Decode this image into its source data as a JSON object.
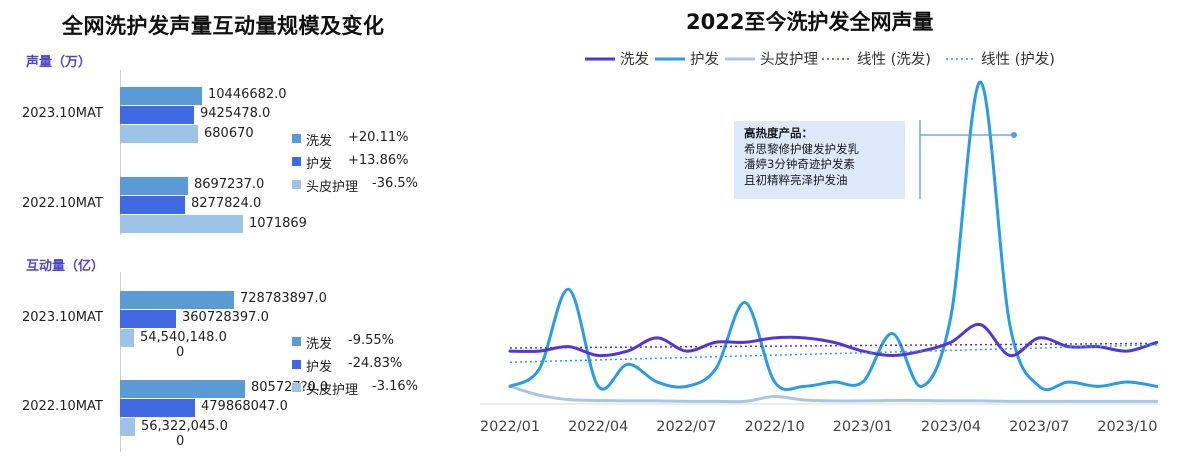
{
  "left_panel": {
    "title": "全网洗护发声量互动量规模及变化",
    "volume_label": "声量（万）",
    "interaction_label": "互动量（亿）"
  },
  "right_panel": {
    "title": "2022至今洗护发全网声量",
    "annotation": {
      "heading": "高热度产品：",
      "lines": [
        "希思黎修护健发护发乳",
        "潘婷3分钟奇迹护发素",
        "且初精粹亮泽护发油"
      ]
    }
  },
  "colors": {
    "wash": "#5b9bd5",
    "care": "#4169e1",
    "scalp": "#9dc3e6",
    "line_wash": "#5336d6",
    "line_care": "#2b9be6",
    "line_scalp": "#a9c7e4",
    "section_label": "#4f46c8"
  },
  "chart_data": [
    {
      "type": "bar",
      "orientation": "horizontal",
      "section": "声量（万）",
      "categories": [
        "2023.10MAT",
        "2022.10MAT"
      ],
      "series": [
        {
          "name": "洗发",
          "values": [
            "10446682.0",
            "8697237.0"
          ],
          "change": "+20.11%"
        },
        {
          "name": "护发",
          "values": [
            "9425478.0",
            "8277824.0"
          ],
          "change": "+13.86%"
        },
        {
          "name": "头皮护理",
          "values": [
            "680670",
            "1071869"
          ],
          "change": "-36.5%"
        }
      ]
    },
    {
      "type": "bar",
      "orientation": "horizontal",
      "section": "互动量（亿）",
      "categories": [
        "2023.10MAT",
        "2022.10MAT"
      ],
      "series": [
        {
          "name": "洗发",
          "values": [
            "728783897.0",
            "805727?0.0"
          ],
          "change": "-9.55%"
        },
        {
          "name": "护发",
          "values": [
            "360728397.0",
            "479868047.0"
          ],
          "change": "-24.83%"
        },
        {
          "name": "头皮护理",
          "values": [
            "54,540,148.0",
            "56,322,045.0"
          ],
          "change": "-3.16%"
        }
      ]
    },
    {
      "type": "line",
      "title": "2022至今洗护发全网声量",
      "x_ticks": [
        "2022/01",
        "2022/04",
        "2022/07",
        "2022/10",
        "2023/01",
        "2023/04",
        "2023/07",
        "2023/10"
      ],
      "series": [
        {
          "name": "洗发",
          "values": [
            12,
            12,
            13,
            11,
            12,
            15,
            12,
            14,
            14,
            15,
            15,
            14,
            12,
            11,
            12,
            14,
            18,
            11,
            15,
            13,
            13,
            12,
            14
          ]
        },
        {
          "name": "护发",
          "values": [
            4,
            8,
            26,
            4,
            9,
            5,
            4,
            8,
            23,
            5,
            4,
            5,
            5,
            16,
            4,
            20,
            73,
            18,
            4,
            5,
            4,
            5,
            4
          ]
        },
        {
          "name": "头皮护理",
          "values": [
            4,
            2,
            1,
            0.8,
            0.7,
            0.7,
            0.6,
            0.6,
            0.6,
            1.7,
            0.9,
            0.7,
            0.7,
            0.8,
            0.8,
            0.7,
            0.7,
            0.6,
            0.6,
            0.6,
            0.6,
            0.6,
            0.6
          ]
        },
        {
          "name": "线性 (洗发)",
          "trend_of": "洗发"
        },
        {
          "name": "线性 (护发)",
          "trend_of": "护发"
        }
      ],
      "ylim": [
        0,
        80
      ]
    }
  ]
}
